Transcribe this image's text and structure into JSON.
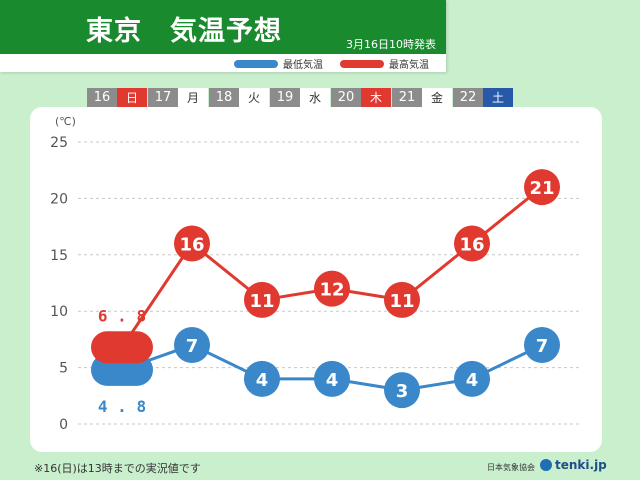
{
  "header": {
    "title": "東京　気温予想",
    "issued": "3月16日10時発表"
  },
  "colors": {
    "low": "#3a87c9",
    "high": "#e03a30",
    "header_green": "#1a8a2e",
    "background": "#c9efcd"
  },
  "days": [
    {
      "num": "16",
      "wd": "日",
      "kind": "sun"
    },
    {
      "num": "17",
      "wd": "月",
      "kind": "normal"
    },
    {
      "num": "18",
      "wd": "火",
      "kind": "normal"
    },
    {
      "num": "19",
      "wd": "水",
      "kind": "normal"
    },
    {
      "num": "20",
      "wd": "木",
      "kind": "thu"
    },
    {
      "num": "21",
      "wd": "金",
      "kind": "normal"
    },
    {
      "num": "22",
      "wd": "土",
      "kind": "sat"
    }
  ],
  "chart_data": {
    "type": "line",
    "categories": [
      "16",
      "17",
      "18",
      "19",
      "20",
      "21",
      "22"
    ],
    "ylim": [
      0,
      25
    ],
    "yticks": [
      "0",
      "5",
      "10",
      "15",
      "20",
      "25"
    ],
    "ylabel": "(℃)",
    "grid": true,
    "legend": "top-right",
    "series": [
      {
        "name": "最低気温",
        "color": "#3a87c9",
        "values": [
          4.8,
          7,
          4,
          4,
          3,
          4,
          7
        ],
        "labels": [
          "4.8",
          "7",
          "4",
          "4",
          "3",
          "4",
          "7"
        ]
      },
      {
        "name": "最高気温",
        "color": "#e03a30",
        "values": [
          6.8,
          16,
          11,
          12,
          11,
          16,
          21
        ],
        "labels": [
          "6.8",
          "16",
          "11",
          "12",
          "11",
          "16",
          "21"
        ]
      }
    ]
  },
  "footer": {
    "note": "※16(日)は13時までの実況値です",
    "credit": "日本気象協会",
    "brand": "tenki.jp"
  }
}
